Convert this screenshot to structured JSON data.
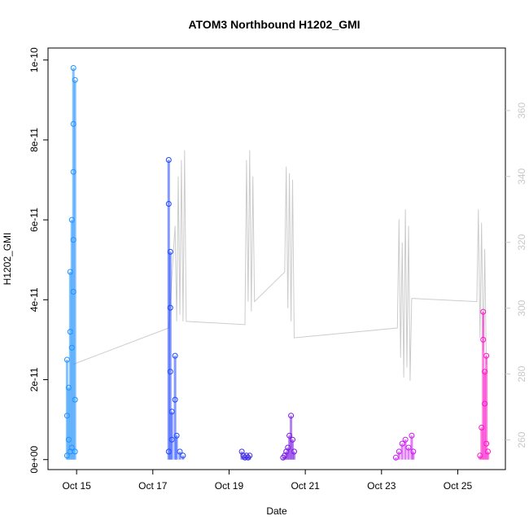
{
  "chart_data": {
    "type": "scatter",
    "title": "ATOM3 Northbound H1202_GMI",
    "xlabel": "Date",
    "ylabel": "H1202_GMI",
    "x_tick_labels": [
      "Oct 15",
      "Oct 17",
      "Oct 19",
      "Oct 21",
      "Oct 23",
      "Oct 25"
    ],
    "y_tick_labels": [
      "0e+00",
      "2e-11",
      "4e-11",
      "6e-11",
      "8e-11",
      "1e-10"
    ],
    "y2_tick_labels": [
      "260",
      "280",
      "300",
      "320",
      "340",
      "360"
    ],
    "xlim": [
      "2017-10-14 06:00",
      "2017-10-26 06:00"
    ],
    "ylim": [
      -2.5e-12,
      1.03e-10
    ],
    "y2lim": [
      251,
      379
    ],
    "grid": false,
    "legend": "none",
    "x_ticks": [
      {
        "label": "Oct 15",
        "t": "2017-10-15 00:00"
      },
      {
        "label": "Oct 17",
        "t": "2017-10-17 00:00"
      },
      {
        "label": "Oct 19",
        "t": "2017-10-19 00:00"
      },
      {
        "label": "Oct 21",
        "t": "2017-10-21 00:00"
      },
      {
        "label": "Oct 23",
        "t": "2017-10-23 00:00"
      },
      {
        "label": "Oct 25",
        "t": "2017-10-25 00:00"
      }
    ],
    "y_ticks": [
      0,
      2e-11,
      4e-11,
      6e-11,
      8e-11,
      1e-10
    ],
    "y2_ticks": [
      260,
      280,
      300,
      320,
      340,
      360
    ],
    "series": [
      {
        "color": "#1e90ff",
        "points": [
          {
            "t": "2017-10-14 18:00",
            "y": 1e-12
          },
          {
            "t": "2017-10-14 18:00",
            "y": 1.1e-11
          },
          {
            "t": "2017-10-14 18:00",
            "y": 2.5e-11
          },
          {
            "t": "2017-10-14 19:00",
            "y": 5e-12
          },
          {
            "t": "2017-10-14 19:00",
            "y": 1.8e-11
          },
          {
            "t": "2017-10-14 20:00",
            "y": 2e-12
          },
          {
            "t": "2017-10-14 20:00",
            "y": 4.7e-11
          },
          {
            "t": "2017-10-14 20:00",
            "y": 3.2e-11
          },
          {
            "t": "2017-10-14 21:00",
            "y": 6e-11
          },
          {
            "t": "2017-10-14 21:00",
            "y": 2.8e-11
          },
          {
            "t": "2017-10-14 21:00",
            "y": 3e-12
          },
          {
            "t": "2017-10-14 22:00",
            "y": 9.8e-11
          },
          {
            "t": "2017-10-14 22:00",
            "y": 8.4e-11
          },
          {
            "t": "2017-10-14 22:00",
            "y": 7.2e-11
          },
          {
            "t": "2017-10-14 22:00",
            "y": 5.5e-11
          },
          {
            "t": "2017-10-14 22:00",
            "y": 4.2e-11
          },
          {
            "t": "2017-10-14 23:00",
            "y": 9.5e-11
          },
          {
            "t": "2017-10-14 23:00",
            "y": 1.5e-11
          },
          {
            "t": "2017-10-14 23:00",
            "y": 2e-12
          }
        ]
      },
      {
        "color": "#1e46ff",
        "points": [
          {
            "t": "2017-10-17 10:00",
            "y": 2e-12
          },
          {
            "t": "2017-10-17 10:00",
            "y": 7.5e-11
          },
          {
            "t": "2017-10-17 10:00",
            "y": 6.4e-11
          },
          {
            "t": "2017-10-17 11:00",
            "y": 5.2e-11
          },
          {
            "t": "2017-10-17 11:00",
            "y": 3.8e-11
          },
          {
            "t": "2017-10-17 11:00",
            "y": 2.2e-11
          },
          {
            "t": "2017-10-17 12:00",
            "y": 1.2e-11
          },
          {
            "t": "2017-10-17 12:00",
            "y": 5e-12
          },
          {
            "t": "2017-10-17 14:00",
            "y": 2.6e-11
          },
          {
            "t": "2017-10-17 14:00",
            "y": 1.5e-11
          },
          {
            "t": "2017-10-17 15:00",
            "y": 6e-12
          },
          {
            "t": "2017-10-17 17:00",
            "y": 2e-12
          },
          {
            "t": "2017-10-17 19:00",
            "y": 1e-12
          }
        ]
      },
      {
        "color": "#3c28e6",
        "points": [
          {
            "t": "2017-10-19 08:00",
            "y": 2e-12
          },
          {
            "t": "2017-10-19 09:00",
            "y": 1e-12
          },
          {
            "t": "2017-10-19 10:00",
            "y": 5e-13
          },
          {
            "t": "2017-10-19 11:00",
            "y": 1e-12
          },
          {
            "t": "2017-10-19 12:00",
            "y": 5e-13
          },
          {
            "t": "2017-10-19 13:00",
            "y": 1e-12
          }
        ]
      },
      {
        "color": "#7814e6",
        "points": [
          {
            "t": "2017-10-20 10:00",
            "y": 5e-13
          },
          {
            "t": "2017-10-20 11:00",
            "y": 1e-12
          },
          {
            "t": "2017-10-20 12:00",
            "y": 2e-12
          },
          {
            "t": "2017-10-20 13:00",
            "y": 3e-12
          },
          {
            "t": "2017-10-20 14:00",
            "y": 6e-12
          },
          {
            "t": "2017-10-20 15:00",
            "y": 1.1e-11
          },
          {
            "t": "2017-10-20 16:00",
            "y": 5e-12
          },
          {
            "t": "2017-10-20 17:00",
            "y": 2e-12
          }
        ]
      },
      {
        "color": "#c814f0",
        "points": [
          {
            "t": "2017-10-23 09:00",
            "y": 5e-13
          },
          {
            "t": "2017-10-23 11:00",
            "y": 2e-12
          },
          {
            "t": "2017-10-23 13:00",
            "y": 4e-12
          },
          {
            "t": "2017-10-23 15:00",
            "y": 5e-12
          },
          {
            "t": "2017-10-23 17:00",
            "y": 3e-12
          },
          {
            "t": "2017-10-23 19:00",
            "y": 6e-12
          },
          {
            "t": "2017-10-23 20:00",
            "y": 2e-12
          }
        ]
      },
      {
        "color": "#ff14c8",
        "points": [
          {
            "t": "2017-10-25 14:00",
            "y": 1e-12
          },
          {
            "t": "2017-10-25 15:00",
            "y": 8e-12
          },
          {
            "t": "2017-10-25 16:00",
            "y": 3.7e-11
          },
          {
            "t": "2017-10-25 16:00",
            "y": 3e-11
          },
          {
            "t": "2017-10-25 17:00",
            "y": 2.2e-11
          },
          {
            "t": "2017-10-25 17:00",
            "y": 1.4e-11
          },
          {
            "t": "2017-10-25 18:00",
            "y": 2.6e-11
          },
          {
            "t": "2017-10-25 18:00",
            "y": 4e-12
          },
          {
            "t": "2017-10-25 19:00",
            "y": 2e-12
          }
        ]
      }
    ],
    "secondary_line": {
      "color": "#cccccc",
      "points": [
        {
          "t": "2017-10-14 22:00",
          "y": 283
        },
        {
          "t": "2017-10-17 10:00",
          "y": 294
        },
        {
          "t": "2017-10-17 14:00",
          "y": 325
        },
        {
          "t": "2017-10-17 15:00",
          "y": 296
        },
        {
          "t": "2017-10-17 16:00",
          "y": 340
        },
        {
          "t": "2017-10-17 17:00",
          "y": 298
        },
        {
          "t": "2017-10-17 18:00",
          "y": 345
        },
        {
          "t": "2017-10-17 19:00",
          "y": 296
        },
        {
          "t": "2017-10-17 20:00",
          "y": 348
        },
        {
          "t": "2017-10-17 21:00",
          "y": 296
        },
        {
          "t": "2017-10-19 10:00",
          "y": 295
        },
        {
          "t": "2017-10-19 11:00",
          "y": 345
        },
        {
          "t": "2017-10-19 12:00",
          "y": 302
        },
        {
          "t": "2017-10-19 13:00",
          "y": 348
        },
        {
          "t": "2017-10-19 14:00",
          "y": 299
        },
        {
          "t": "2017-10-19 15:00",
          "y": 340
        },
        {
          "t": "2017-10-19 16:00",
          "y": 302
        },
        {
          "t": "2017-10-20 11:00",
          "y": 311
        },
        {
          "t": "2017-10-20 12:00",
          "y": 343
        },
        {
          "t": "2017-10-20 13:00",
          "y": 300
        },
        {
          "t": "2017-10-20 14:00",
          "y": 341
        },
        {
          "t": "2017-10-20 15:00",
          "y": 296
        },
        {
          "t": "2017-10-20 16:00",
          "y": 339
        },
        {
          "t": "2017-10-20 17:00",
          "y": 291
        },
        {
          "t": "2017-10-23 10:00",
          "y": 294
        },
        {
          "t": "2017-10-23 11:00",
          "y": 327
        },
        {
          "t": "2017-10-23 12:00",
          "y": 285
        },
        {
          "t": "2017-10-23 13:00",
          "y": 320
        },
        {
          "t": "2017-10-23 14:00",
          "y": 279
        },
        {
          "t": "2017-10-23 15:00",
          "y": 330
        },
        {
          "t": "2017-10-23 16:00",
          "y": 282
        },
        {
          "t": "2017-10-23 17:00",
          "y": 325
        },
        {
          "t": "2017-10-23 18:00",
          "y": 278
        },
        {
          "t": "2017-10-23 19:00",
          "y": 303
        },
        {
          "t": "2017-10-25 12:00",
          "y": 302
        },
        {
          "t": "2017-10-25 13:00",
          "y": 330
        },
        {
          "t": "2017-10-25 14:00",
          "y": 291
        },
        {
          "t": "2017-10-25 15:00",
          "y": 326
        },
        {
          "t": "2017-10-25 16:00",
          "y": 287
        },
        {
          "t": "2017-10-25 17:00",
          "y": 318
        },
        {
          "t": "2017-10-25 18:00",
          "y": 283
        }
      ]
    }
  }
}
